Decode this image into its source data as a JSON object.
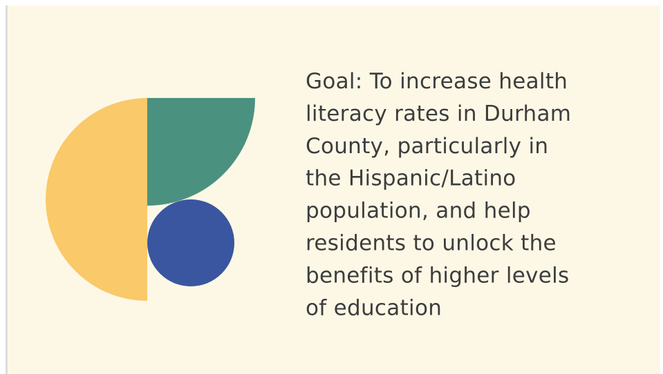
{
  "slide": {
    "text_lines": [
      "Goal: To increase health",
      "literacy rates in Durham",
      "County, particularly in",
      "the Hispanic/Latino",
      "population, and help",
      "residents to unlock the",
      "benefits of higher levels",
      "of education"
    ]
  }
}
